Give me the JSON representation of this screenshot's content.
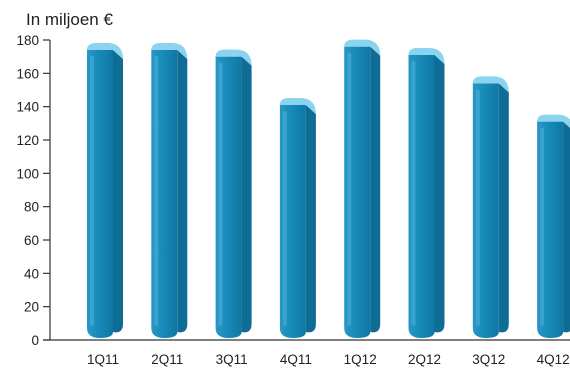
{
  "chart_data": {
    "type": "bar",
    "title": "",
    "unit_label": "In miljoen €",
    "xlabel": "",
    "ylabel": "",
    "categories": [
      "1Q11",
      "2Q11",
      "3Q11",
      "4Q11",
      "1Q12",
      "2Q12",
      "3Q12",
      "4Q12"
    ],
    "values": [
      174,
      174,
      170,
      141,
      176,
      171,
      154,
      131
    ],
    "ylim": [
      0,
      180
    ],
    "yticks": [
      0,
      20,
      40,
      60,
      80,
      100,
      120,
      140,
      160,
      180
    ],
    "grid": false,
    "legend": "none",
    "style": "3d-cylinder",
    "colors": {
      "bar_front": "#1483b1",
      "bar_side": "#0f6c94",
      "bar_top": "#8ad4ef",
      "bar_highlight": "#4cb3dc",
      "axis": "#333333",
      "text": "#222222"
    }
  }
}
